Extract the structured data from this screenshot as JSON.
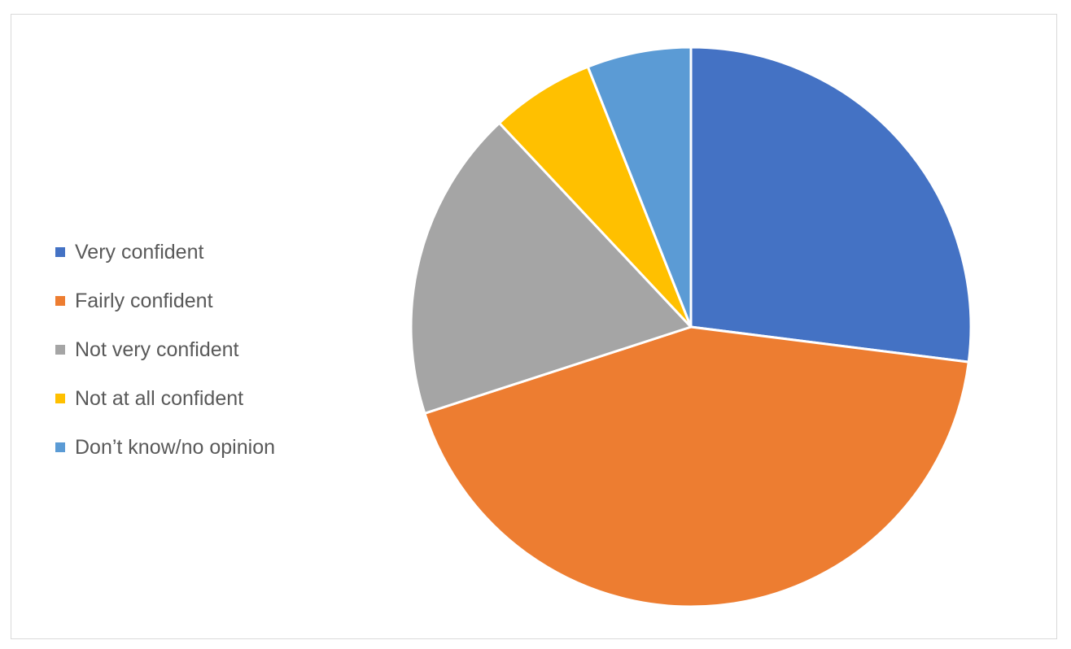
{
  "chart_data": {
    "type": "pie",
    "title": "",
    "categories": [
      "Very confident",
      "Fairly confident",
      "Not very confident",
      "Not at all confident",
      "Don’t know/no opinion"
    ],
    "values": [
      27,
      43,
      18,
      6,
      6
    ],
    "unit": "%",
    "legend_position": "left",
    "start_angle_deg": 0,
    "direction": "clockwise"
  },
  "legend": {
    "items": [
      {
        "label": "Very confident",
        "color": "#4472c4"
      },
      {
        "label": "Fairly confident",
        "color": "#ed7d31"
      },
      {
        "label": "Not very confident",
        "color": "#a5a5a5"
      },
      {
        "label": "Not at all confident",
        "color": "#ffc000"
      },
      {
        "label": "Don’t know/no opinion",
        "color": "#5b9bd5"
      }
    ]
  },
  "colors": {
    "slice_border": "#ffffff",
    "frame_border": "#d9d9d9",
    "legend_text": "#595959"
  }
}
